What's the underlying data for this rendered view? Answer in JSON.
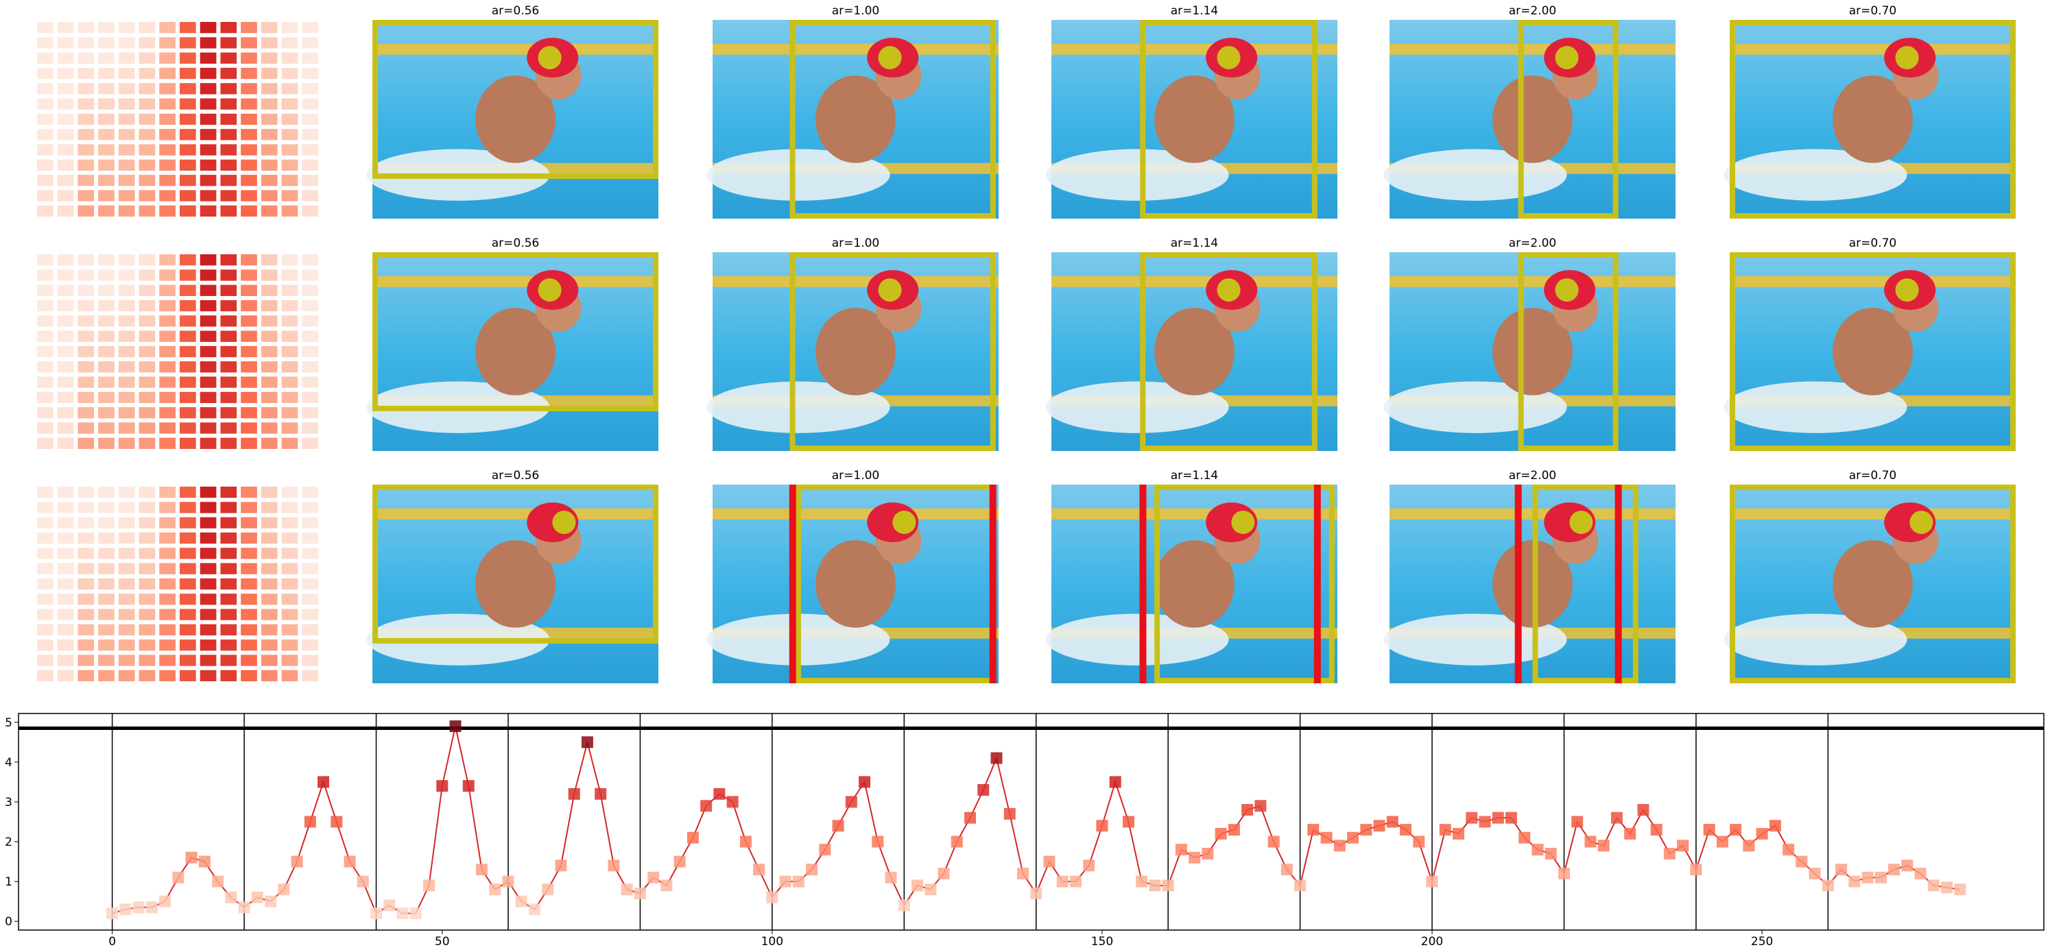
{
  "panel_titles": [
    [
      "ar=0.56",
      "ar=1.00",
      "ar=1.14",
      "ar=2.00",
      "ar=0.70"
    ],
    [
      "ar=0.56",
      "ar=1.00",
      "ar=1.14",
      "ar=2.00",
      "ar=0.70"
    ],
    [
      "ar=0.56",
      "ar=1.00",
      "ar=1.14",
      "ar=2.00",
      "ar=0.70"
    ]
  ],
  "chart_data": {
    "type": "line",
    "color": "#d62728",
    "x": [
      0,
      2,
      4,
      6,
      8,
      10,
      12,
      14,
      16,
      18,
      20,
      22,
      24,
      26,
      28,
      30,
      32,
      34,
      36,
      38,
      40,
      42,
      44,
      46,
      48,
      50,
      52,
      54,
      56,
      58,
      60,
      62,
      64,
      66,
      68,
      70,
      72,
      74,
      76,
      78,
      80,
      82,
      84,
      86,
      88,
      90,
      92,
      94,
      96,
      98,
      100,
      102,
      104,
      106,
      108,
      110,
      112,
      114,
      116,
      118,
      120,
      122,
      124,
      126,
      128,
      130,
      132,
      134,
      136,
      138,
      140,
      142,
      144,
      146,
      148,
      150,
      152,
      154,
      156,
      158,
      160,
      162,
      164,
      166,
      168,
      170,
      172,
      174,
      176,
      178,
      180,
      182,
      184,
      186,
      188,
      190,
      192,
      194,
      196,
      198,
      200,
      202,
      204,
      206,
      208,
      210,
      212,
      214,
      216,
      218,
      220,
      222,
      224,
      226,
      228,
      230,
      232,
      234,
      236,
      238,
      240,
      242,
      244,
      246,
      248,
      250,
      252,
      254,
      256,
      258,
      260,
      262,
      264,
      266,
      268,
      270,
      272,
      274,
      276,
      278,
      280
    ],
    "values": [
      0.2,
      0.3,
      0.35,
      0.35,
      0.5,
      1.1,
      1.6,
      1.5,
      1.0,
      0.6,
      0.35,
      0.6,
      0.5,
      0.8,
      1.5,
      2.5,
      3.5,
      2.5,
      1.5,
      1.0,
      0.2,
      0.4,
      0.2,
      0.2,
      0.9,
      3.4,
      4.9,
      3.4,
      1.3,
      0.8,
      1.0,
      0.5,
      0.3,
      0.8,
      1.4,
      3.2,
      4.5,
      3.2,
      1.4,
      0.8,
      0.7,
      1.1,
      0.9,
      1.5,
      2.1,
      2.9,
      3.2,
      3.0,
      2.0,
      1.3,
      0.6,
      1.0,
      1.0,
      1.3,
      1.8,
      2.4,
      3.0,
      3.5,
      2.0,
      1.1,
      0.4,
      0.9,
      0.8,
      1.2,
      2.0,
      2.6,
      3.3,
      4.1,
      2.7,
      1.2,
      0.7,
      1.5,
      1.0,
      1.0,
      1.4,
      2.4,
      3.5,
      2.5,
      1.0,
      0.9,
      0.9,
      1.8,
      1.6,
      1.7,
      2.2,
      2.3,
      2.8,
      2.9,
      2.0,
      1.3,
      0.9,
      2.3,
      2.1,
      1.9,
      2.1,
      2.3,
      2.4,
      2.5,
      2.3,
      2.0,
      1.0,
      2.3,
      2.2,
      2.6,
      2.5,
      2.6,
      2.6,
      2.1,
      1.8,
      1.7,
      1.2,
      2.5,
      2.0,
      1.9,
      2.6,
      2.2,
      2.8,
      2.3,
      1.7,
      1.9,
      1.3,
      2.3,
      2.0,
      2.3,
      1.9,
      2.2,
      2.4,
      1.8,
      1.5,
      1.2,
      0.9,
      1.3,
      1.0,
      1.1,
      1.1,
      1.3,
      1.4,
      1.2,
      0.9,
      0.85,
      0.8
    ],
    "xlim": [
      -14.2,
      292.7
    ],
    "ylim": [
      -0.22,
      5.22
    ],
    "xticks": [
      0,
      50,
      100,
      150,
      200,
      250
    ],
    "yticks": [
      0,
      1,
      2,
      3,
      4,
      5
    ],
    "vlines": [
      0,
      20,
      40,
      60,
      80,
      100,
      120,
      140,
      160,
      180,
      200,
      220,
      240,
      260
    ],
    "hline": 4.85
  }
}
